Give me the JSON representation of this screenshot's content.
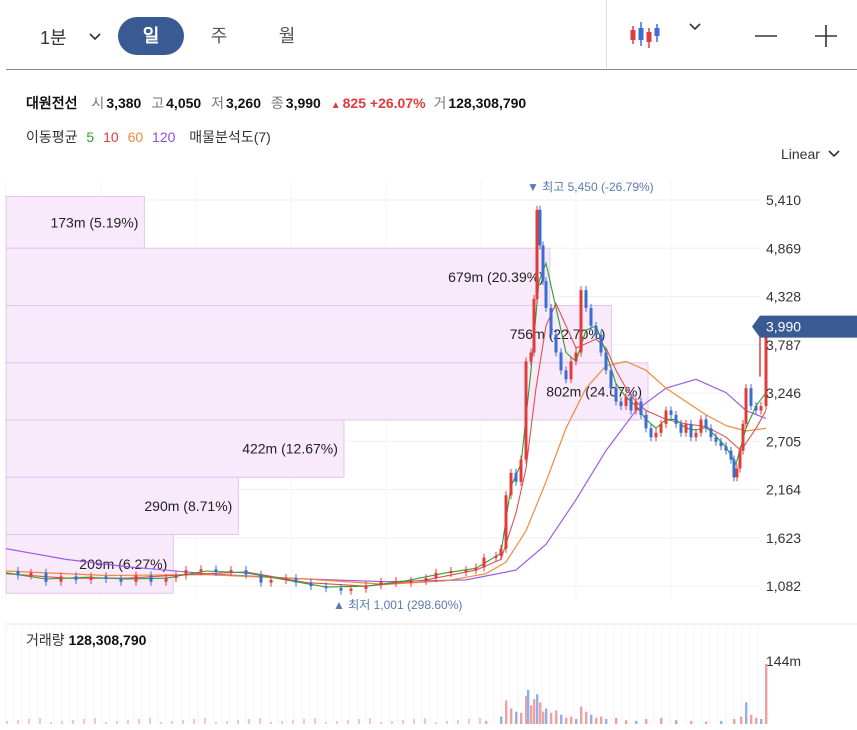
{
  "toolbar": {
    "timeframe": "1분",
    "tabs": [
      "일",
      "주",
      "월"
    ],
    "active_tab": "일"
  },
  "stock": {
    "name": "대원전선",
    "open_label": "시",
    "open": "3,380",
    "high_label": "고",
    "high": "4,050",
    "low_label": "저",
    "low": "3,260",
    "close_label": "종",
    "close": "3,990",
    "change": "825",
    "change_pct": "+26.07%",
    "volume_label": "거",
    "volume": "128,308,790"
  },
  "moving_averages": {
    "label": "이동평균",
    "periods": [
      {
        "period": "5",
        "color": "#2ca02c"
      },
      {
        "period": "10",
        "color": "#e03c3c"
      },
      {
        "period": "60",
        "color": "#f08a3c"
      },
      {
        "period": "120",
        "color": "#8a4fe0"
      }
    ],
    "profile_label": "매물분석도(7)"
  },
  "scale": "Linear",
  "chart_data": {
    "type": "candlestick",
    "y_ticks": [
      "5,410",
      "4,869",
      "4,328",
      "3,787",
      "3,246",
      "2,705",
      "2,164",
      "1,623",
      "1,082"
    ],
    "ylim": [
      900,
      5600
    ],
    "current_price": "3,990",
    "high_marker": {
      "label": "최고",
      "value": "5,450",
      "pct": "(-26.79%)"
    },
    "low_marker": {
      "label": "최저",
      "value": "1,001",
      "pct": "(298.60%)"
    },
    "volume_profile": [
      {
        "label": "173m (5.19%)",
        "low": 4869,
        "high": 5450,
        "pct": 5.19
      },
      {
        "label": "679m (20.39%)",
        "low": 4227,
        "high": 4869,
        "pct": 20.39
      },
      {
        "label": "756m (22.70%)",
        "low": 3585,
        "high": 4227,
        "pct": 22.7
      },
      {
        "label": "802m (24.07%)",
        "low": 2943,
        "high": 3585,
        "pct": 24.07
      },
      {
        "label": "422m (12.67%)",
        "low": 2301,
        "high": 2943,
        "pct": 12.67
      },
      {
        "label": "290m (8.71%)",
        "low": 1659,
        "high": 2301,
        "pct": 8.71
      },
      {
        "label": "209m (6.27%)",
        "low": 1001,
        "high": 1659,
        "pct": 6.27
      }
    ],
    "price_path": [
      [
        0,
        1250
      ],
      [
        12,
        1200
      ],
      [
        25,
        1230
      ],
      [
        40,
        1130
      ],
      [
        55,
        1190
      ],
      [
        70,
        1150
      ],
      [
        85,
        1190
      ],
      [
        100,
        1160
      ],
      [
        115,
        1130
      ],
      [
        130,
        1200
      ],
      [
        145,
        1130
      ],
      [
        160,
        1170
      ],
      [
        170,
        1200
      ],
      [
        180,
        1260
      ],
      [
        195,
        1270
      ],
      [
        210,
        1240
      ],
      [
        225,
        1260
      ],
      [
        240,
        1210
      ],
      [
        255,
        1120
      ],
      [
        265,
        1150
      ],
      [
        280,
        1170
      ],
      [
        290,
        1120
      ],
      [
        305,
        1080
      ],
      [
        320,
        1060
      ],
      [
        335,
        1030
      ],
      [
        345,
        1050
      ],
      [
        360,
        1090
      ],
      [
        375,
        1130
      ],
      [
        390,
        1140
      ],
      [
        405,
        1140
      ],
      [
        420,
        1170
      ],
      [
        430,
        1230
      ],
      [
        445,
        1250
      ],
      [
        460,
        1260
      ],
      [
        470,
        1290
      ],
      [
        478,
        1400
      ],
      [
        490,
        1420
      ],
      [
        495,
        1500
      ],
      [
        500,
        2100
      ],
      [
        505,
        2350
      ],
      [
        510,
        2250
      ],
      [
        515,
        2500
      ],
      [
        520,
        3600
      ],
      [
        525,
        3700
      ],
      [
        528,
        4300
      ],
      [
        531,
        5300
      ],
      [
        534,
        4900
      ],
      [
        537,
        4500
      ],
      [
        540,
        4200
      ],
      [
        545,
        3900
      ],
      [
        550,
        3700
      ],
      [
        555,
        3500
      ],
      [
        560,
        3400
      ],
      [
        565,
        3600
      ],
      [
        570,
        3700
      ],
      [
        575,
        4400
      ],
      [
        580,
        4200
      ],
      [
        585,
        4000
      ],
      [
        590,
        3900
      ],
      [
        595,
        3700
      ],
      [
        600,
        3500
      ],
      [
        605,
        3300
      ],
      [
        610,
        3150
      ],
      [
        615,
        3100
      ],
      [
        620,
        3200
      ],
      [
        625,
        3050
      ],
      [
        630,
        3150
      ],
      [
        635,
        3000
      ],
      [
        640,
        2850
      ],
      [
        645,
        2750
      ],
      [
        650,
        2800
      ],
      [
        655,
        2900
      ],
      [
        660,
        3050
      ],
      [
        665,
        3000
      ],
      [
        670,
        2900
      ],
      [
        675,
        2800
      ],
      [
        680,
        2900
      ],
      [
        685,
        2750
      ],
      [
        690,
        2800
      ],
      [
        695,
        2950
      ],
      [
        700,
        2850
      ],
      [
        705,
        2750
      ],
      [
        710,
        2700
      ],
      [
        715,
        2650
      ],
      [
        720,
        2600
      ],
      [
        725,
        2500
      ],
      [
        728,
        2300
      ],
      [
        731,
        2400
      ],
      [
        734,
        2600
      ],
      [
        737,
        2900
      ],
      [
        740,
        3300
      ],
      [
        745,
        3100
      ],
      [
        750,
        3050
      ],
      [
        755,
        3100
      ],
      [
        760,
        3990
      ]
    ],
    "ma5_path": [
      [
        0,
        1230
      ],
      [
        40,
        1160
      ],
      [
        80,
        1180
      ],
      [
        120,
        1160
      ],
      [
        160,
        1170
      ],
      [
        200,
        1250
      ],
      [
        240,
        1230
      ],
      [
        280,
        1150
      ],
      [
        320,
        1070
      ],
      [
        360,
        1080
      ],
      [
        400,
        1140
      ],
      [
        440,
        1230
      ],
      [
        470,
        1280
      ],
      [
        495,
        1450
      ],
      [
        505,
        2200
      ],
      [
        515,
        2450
      ],
      [
        525,
        3500
      ],
      [
        533,
        4500
      ],
      [
        540,
        4700
      ],
      [
        550,
        4200
      ],
      [
        560,
        3700
      ],
      [
        570,
        3600
      ],
      [
        580,
        3950
      ],
      [
        590,
        4000
      ],
      [
        600,
        3700
      ],
      [
        610,
        3350
      ],
      [
        620,
        3200
      ],
      [
        630,
        3100
      ],
      [
        640,
        2950
      ],
      [
        650,
        2850
      ],
      [
        660,
        2950
      ],
      [
        670,
        2950
      ],
      [
        680,
        2850
      ],
      [
        690,
        2830
      ],
      [
        700,
        2860
      ],
      [
        710,
        2760
      ],
      [
        720,
        2640
      ],
      [
        730,
        2450
      ],
      [
        740,
        2850
      ],
      [
        750,
        3100
      ],
      [
        760,
        3250
      ]
    ],
    "ma10_path": [
      [
        0,
        1220
      ],
      [
        60,
        1170
      ],
      [
        120,
        1170
      ],
      [
        180,
        1210
      ],
      [
        240,
        1240
      ],
      [
        300,
        1120
      ],
      [
        360,
        1080
      ],
      [
        420,
        1150
      ],
      [
        470,
        1260
      ],
      [
        495,
        1380
      ],
      [
        510,
        1900
      ],
      [
        520,
        2400
      ],
      [
        530,
        3300
      ],
      [
        540,
        4000
      ],
      [
        550,
        4250
      ],
      [
        560,
        4000
      ],
      [
        570,
        3750
      ],
      [
        580,
        3800
      ],
      [
        590,
        3850
      ],
      [
        600,
        3750
      ],
      [
        610,
        3500
      ],
      [
        620,
        3300
      ],
      [
        630,
        3150
      ],
      [
        640,
        3050
      ],
      [
        660,
        2950
      ],
      [
        680,
        2900
      ],
      [
        700,
        2870
      ],
      [
        720,
        2750
      ],
      [
        735,
        2600
      ],
      [
        750,
        2850
      ],
      [
        760,
        3050
      ]
    ],
    "ma60_path": [
      [
        0,
        1250
      ],
      [
        100,
        1200
      ],
      [
        200,
        1210
      ],
      [
        300,
        1160
      ],
      [
        380,
        1100
      ],
      [
        440,
        1140
      ],
      [
        480,
        1220
      ],
      [
        500,
        1350
      ],
      [
        520,
        1700
      ],
      [
        540,
        2250
      ],
      [
        560,
        2850
      ],
      [
        580,
        3300
      ],
      [
        600,
        3550
      ],
      [
        620,
        3600
      ],
      [
        640,
        3500
      ],
      [
        660,
        3300
      ],
      [
        680,
        3150
      ],
      [
        700,
        3000
      ],
      [
        720,
        2880
      ],
      [
        740,
        2820
      ],
      [
        760,
        2850
      ]
    ],
    "ma120_path": [
      [
        0,
        1500
      ],
      [
        60,
        1380
      ],
      [
        120,
        1300
      ],
      [
        200,
        1220
      ],
      [
        300,
        1160
      ],
      [
        380,
        1130
      ],
      [
        460,
        1150
      ],
      [
        510,
        1260
      ],
      [
        540,
        1550
      ],
      [
        570,
        2050
      ],
      [
        600,
        2600
      ],
      [
        630,
        3050
      ],
      [
        660,
        3300
      ],
      [
        690,
        3400
      ],
      [
        720,
        3250
      ],
      [
        740,
        3050
      ],
      [
        760,
        2960
      ]
    ],
    "volume": {
      "label": "거래량",
      "value": "128,308,790",
      "max_label": "144m",
      "bars": [
        [
          480,
          5
        ],
        [
          495,
          12
        ],
        [
          500,
          38
        ],
        [
          505,
          25
        ],
        [
          510,
          20
        ],
        [
          515,
          18
        ],
        [
          520,
          45
        ],
        [
          522,
          55
        ],
        [
          525,
          30
        ],
        [
          528,
          40
        ],
        [
          531,
          48
        ],
        [
          534,
          35
        ],
        [
          537,
          20
        ],
        [
          540,
          25
        ],
        [
          545,
          18
        ],
        [
          550,
          22
        ],
        [
          555,
          15
        ],
        [
          560,
          10
        ],
        [
          565,
          12
        ],
        [
          570,
          8
        ],
        [
          575,
          28
        ],
        [
          580,
          20
        ],
        [
          585,
          15
        ],
        [
          590,
          10
        ],
        [
          595,
          12
        ],
        [
          600,
          8
        ],
        [
          610,
          10
        ],
        [
          620,
          6
        ],
        [
          630,
          5
        ],
        [
          640,
          8
        ],
        [
          655,
          10
        ],
        [
          670,
          6
        ],
        [
          685,
          5
        ],
        [
          700,
          4
        ],
        [
          715,
          5
        ],
        [
          728,
          8
        ],
        [
          735,
          12
        ],
        [
          740,
          35
        ],
        [
          745,
          15
        ],
        [
          750,
          10
        ],
        [
          755,
          8
        ],
        [
          760,
          97
        ]
      ]
    }
  }
}
